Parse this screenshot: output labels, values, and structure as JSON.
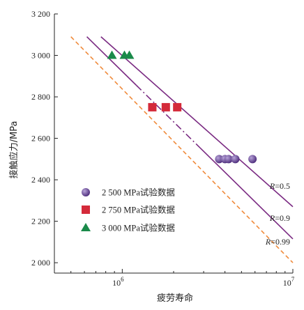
{
  "chart_data": {
    "type": "scatter",
    "xlabel": "疲劳寿命",
    "ylabel": "接触应力/MPa",
    "x_scale": "log",
    "xlim": [
      400000,
      10000000
    ],
    "ylim": [
      1950,
      3200
    ],
    "x_ticks": [
      {
        "value": 1000000,
        "base": "10",
        "exp": "6"
      },
      {
        "value": 10000000,
        "base": "10",
        "exp": "7"
      }
    ],
    "y_ticks": [
      {
        "value": 2000,
        "label": "2 000"
      },
      {
        "value": 2200,
        "label": "2 200"
      },
      {
        "value": 2400,
        "label": "2 400"
      },
      {
        "value": 2600,
        "label": "2 600"
      },
      {
        "value": 2800,
        "label": "2 800"
      },
      {
        "value": 3000,
        "label": "3 000"
      },
      {
        "value": 3200,
        "label": "3 200"
      }
    ],
    "series": [
      {
        "name": "2 500 MPa试验数据",
        "marker": "circle",
        "color": "#4b2a7a",
        "points": [
          {
            "x": 3700000,
            "y": 2500
          },
          {
            "x": 4000000,
            "y": 2500
          },
          {
            "x": 4200000,
            "y": 2500
          },
          {
            "x": 4600000,
            "y": 2500
          },
          {
            "x": 5800000,
            "y": 2500
          }
        ]
      },
      {
        "name": "2 750 MPa试验数据",
        "marker": "square",
        "color": "#d42a3a",
        "points": [
          {
            "x": 1500000,
            "y": 2750
          },
          {
            "x": 1800000,
            "y": 2750
          },
          {
            "x": 2100000,
            "y": 2750
          }
        ]
      },
      {
        "name": "3 000 MPa试验数据",
        "marker": "triangle",
        "color": "#1a8a4a",
        "points": [
          {
            "x": 870000,
            "y": 3000
          },
          {
            "x": 1030000,
            "y": 3000
          },
          {
            "x": 1100000,
            "y": 3000
          }
        ]
      }
    ],
    "curves": [
      {
        "label": "R=0.5",
        "label_italic": "R",
        "label_rest": "=0.5",
        "color": "#7a2a82",
        "style": "solid",
        "points": [
          {
            "x": 750000,
            "y": 3090
          },
          {
            "x": 10000000,
            "y": 2270
          }
        ]
      },
      {
        "label": "R=0.9",
        "label_italic": "R",
        "label_rest": "=0.9",
        "color": "#7a2a82",
        "style": "solid-dashdot",
        "points": [
          {
            "x": 620000,
            "y": 3090
          },
          {
            "x": 10000000,
            "y": 2115
          }
        ]
      },
      {
        "label": "R=0.99",
        "label_italic": "R",
        "label_rest": "=0.99",
        "color": "#f08a3a",
        "style": "dashed",
        "points": [
          {
            "x": 500000,
            "y": 3090
          },
          {
            "x": 10000000,
            "y": 2000
          }
        ]
      }
    ],
    "legend_position": "lower-left",
    "grid": false
  }
}
